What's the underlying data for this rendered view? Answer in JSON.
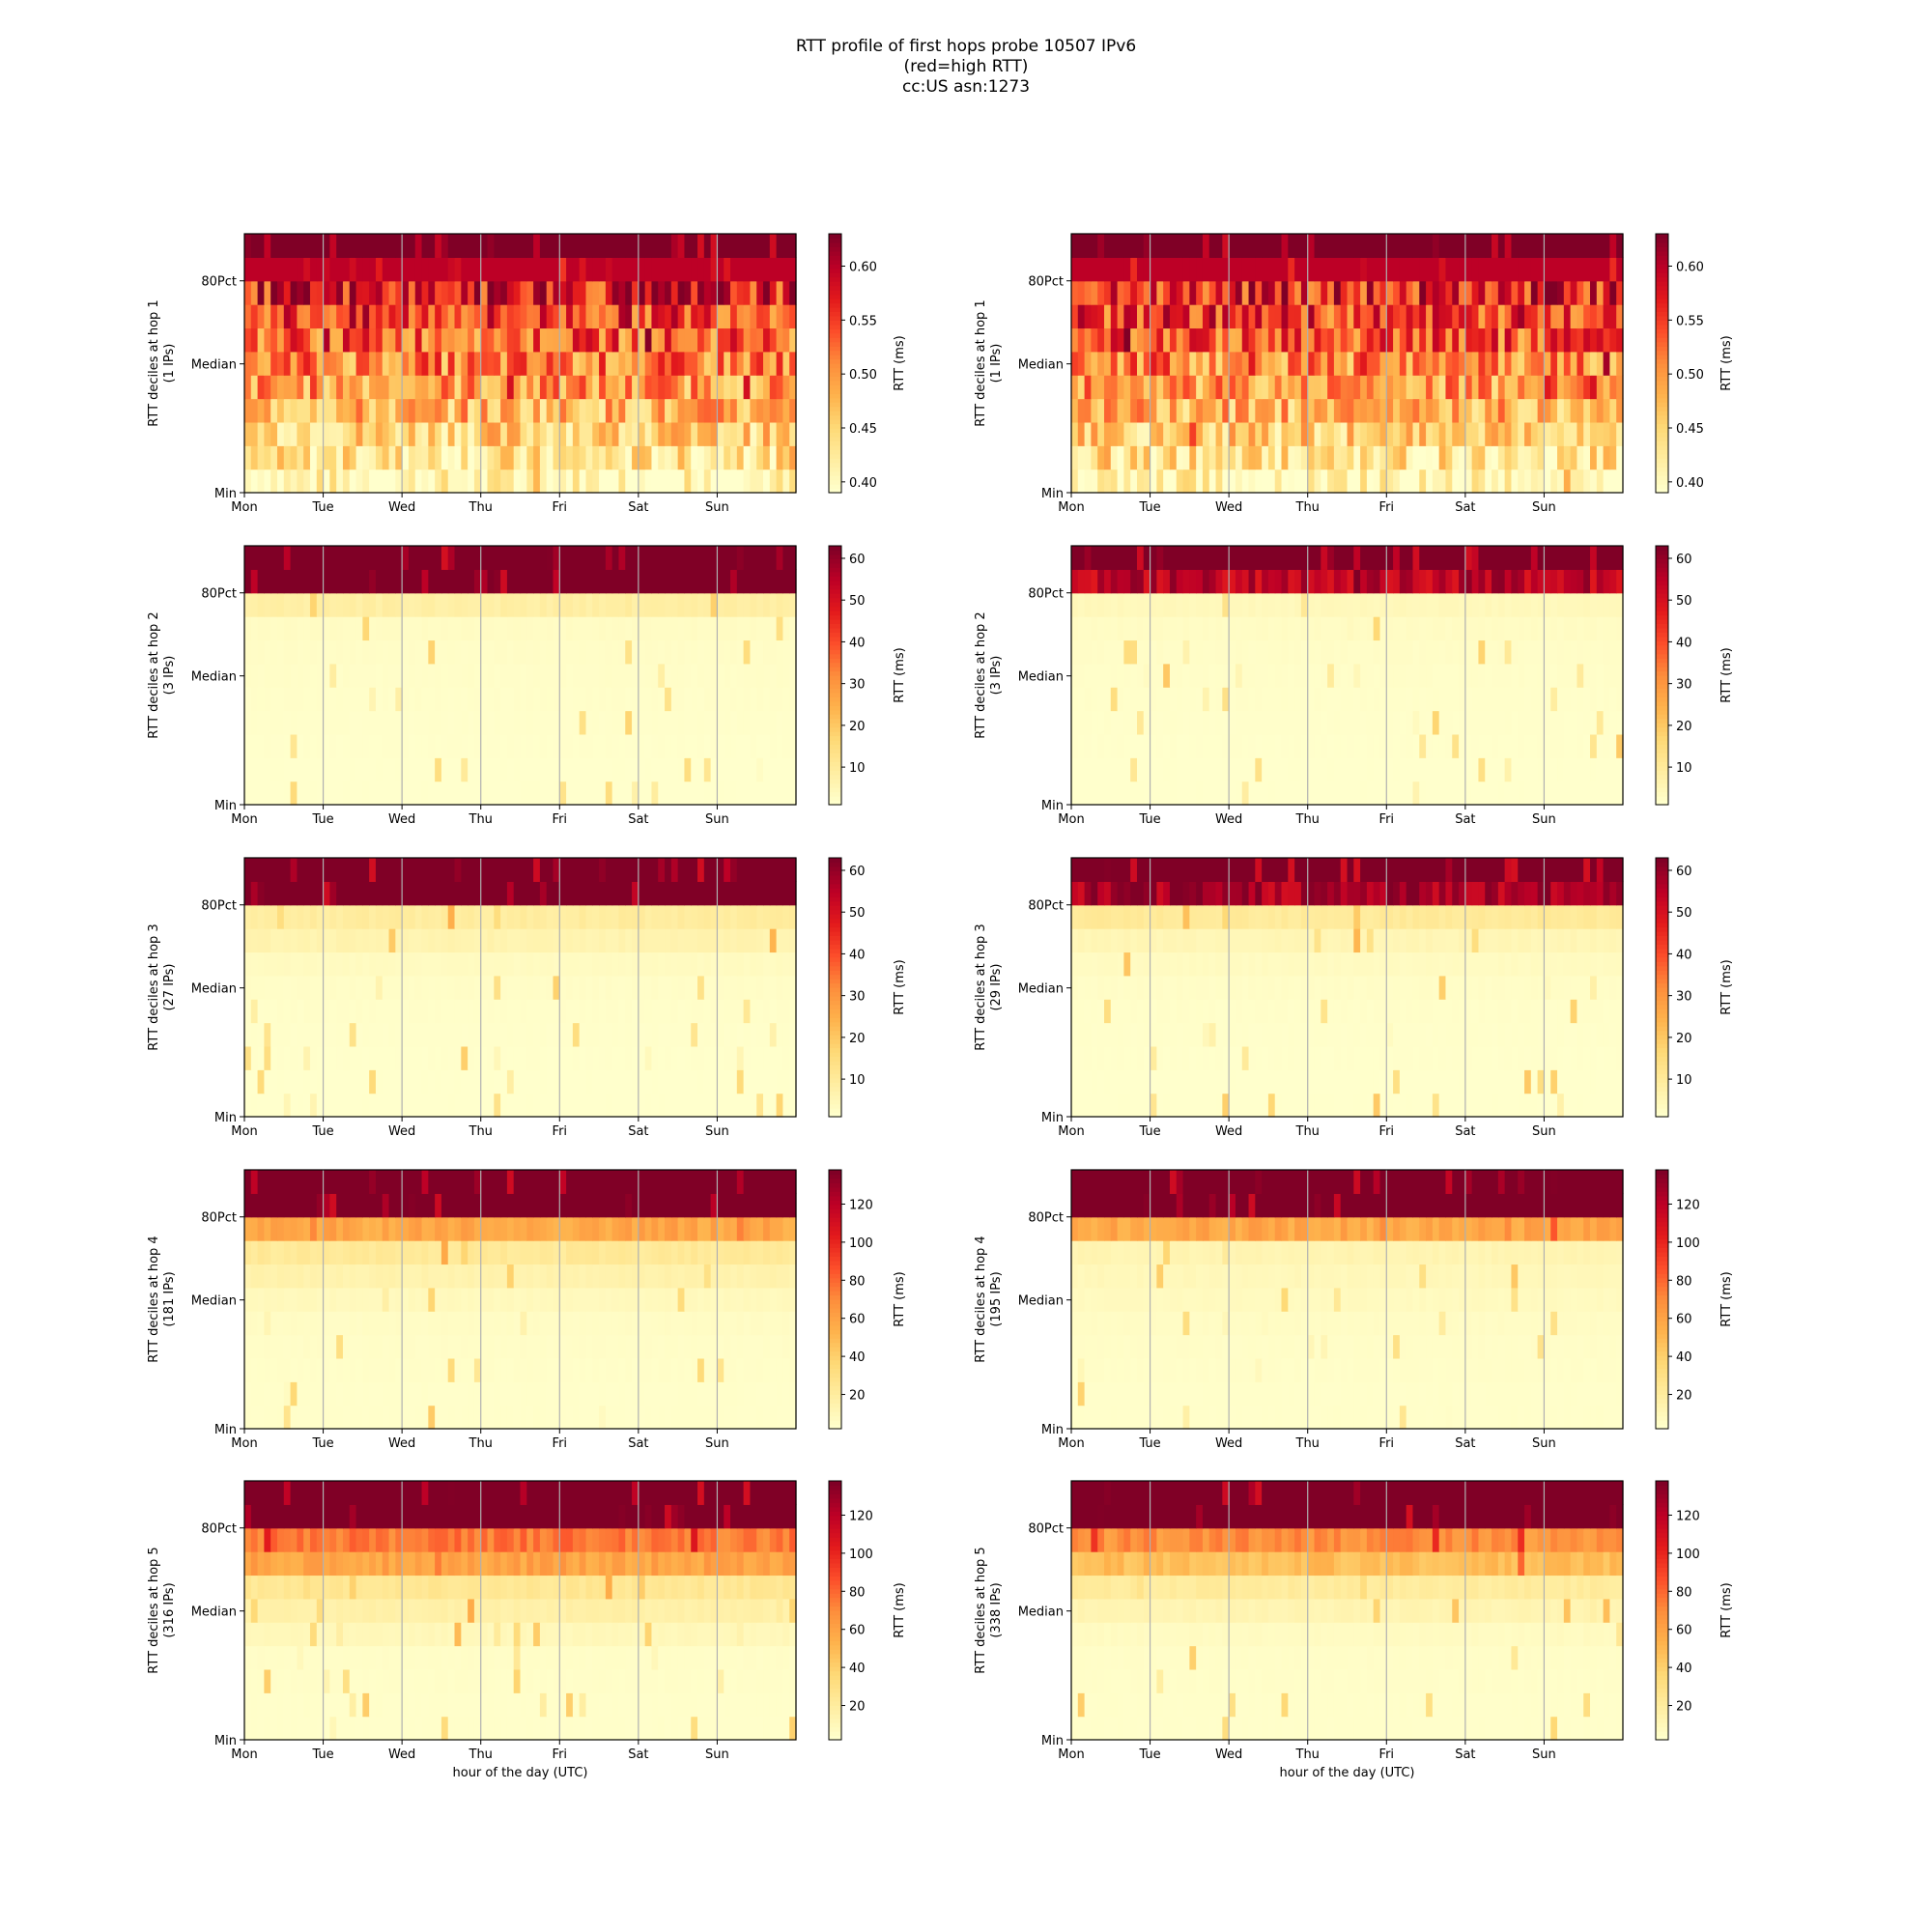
{
  "figure": {
    "title_lines": [
      "RTT profile of first hops probe 10507 IPv6",
      "(red=high RTT)",
      "cc:US asn:1273"
    ],
    "xlabel": "hour of the day (UTC)"
  },
  "chart_data": [
    {
      "type": "heatmap",
      "hop": 1,
      "ylabel": "RTT deciles at hop 1",
      "ips_label": "(1 IPs)",
      "x_ticks": [
        "Mon",
        "Tue",
        "Wed",
        "Thu",
        "Fri",
        "Sat",
        "Sun"
      ],
      "y_ticks": [
        "Min",
        "Median",
        "80Pct"
      ],
      "cbar_label": "RTT (ms)",
      "cbar_ticks": [
        "0.40",
        "0.45",
        "0.50",
        "0.55",
        "0.60"
      ],
      "cbar_range": [
        0.39,
        0.63
      ],
      "decile_rtt": [
        0.405,
        0.43,
        0.455,
        0.475,
        0.495,
        0.51,
        0.53,
        0.55,
        0.57,
        0.6,
        0.63
      ]
    },
    {
      "type": "heatmap",
      "hop": 1,
      "ylabel": "RTT deciles at hop 1",
      "ips_label": "(1 IPs)",
      "x_ticks": [
        "Mon",
        "Tue",
        "Wed",
        "Thu",
        "Fri",
        "Sat",
        "Sun"
      ],
      "y_ticks": [
        "Min",
        "Median",
        "80Pct"
      ],
      "cbar_label": "RTT (ms)",
      "cbar_ticks": [
        "0.40",
        "0.45",
        "0.50",
        "0.55",
        "0.60"
      ],
      "cbar_range": [
        0.39,
        0.63
      ],
      "decile_rtt": [
        0.405,
        0.43,
        0.455,
        0.475,
        0.495,
        0.51,
        0.53,
        0.55,
        0.57,
        0.6,
        0.63
      ]
    },
    {
      "type": "heatmap",
      "hop": 2,
      "ylabel": "RTT deciles at hop 2",
      "ips_label": "(3 IPs)",
      "x_ticks": [
        "Mon",
        "Tue",
        "Wed",
        "Thu",
        "Fri",
        "Sat",
        "Sun"
      ],
      "y_ticks": [
        "Min",
        "Median",
        "80Pct"
      ],
      "cbar_label": "RTT (ms)",
      "cbar_ticks": [
        "10",
        "20",
        "30",
        "40",
        "50",
        "60"
      ],
      "cbar_range": [
        1,
        63
      ],
      "decile_rtt": [
        1,
        1,
        1.2,
        1.4,
        1.6,
        1.8,
        2,
        2.5,
        8,
        63,
        63
      ]
    },
    {
      "type": "heatmap",
      "hop": 2,
      "ylabel": "RTT deciles at hop 2",
      "ips_label": "(3 IPs)",
      "x_ticks": [
        "Mon",
        "Tue",
        "Wed",
        "Thu",
        "Fri",
        "Sat",
        "Sun"
      ],
      "y_ticks": [
        "Min",
        "Median",
        "80Pct"
      ],
      "cbar_label": "RTT (ms)",
      "cbar_ticks": [
        "10",
        "20",
        "30",
        "40",
        "50",
        "60"
      ],
      "cbar_range": [
        1,
        63
      ],
      "decile_rtt": [
        1,
        1,
        1.2,
        1.3,
        1.5,
        1.7,
        2,
        2.5,
        4,
        55,
        63
      ]
    },
    {
      "type": "heatmap",
      "hop": 3,
      "ylabel": "RTT deciles at hop 3",
      "ips_label": "(27 IPs)",
      "x_ticks": [
        "Mon",
        "Tue",
        "Wed",
        "Thu",
        "Fri",
        "Sat",
        "Sun"
      ],
      "y_ticks": [
        "Min",
        "Median",
        "80Pct"
      ],
      "cbar_label": "RTT (ms)",
      "cbar_ticks": [
        "10",
        "20",
        "30",
        "40",
        "50",
        "60"
      ],
      "cbar_range": [
        1,
        63
      ],
      "decile_rtt": [
        1,
        1,
        1.2,
        1.4,
        1.6,
        2,
        3,
        6,
        9,
        63,
        63
      ]
    },
    {
      "type": "heatmap",
      "hop": 3,
      "ylabel": "RTT deciles at hop 3",
      "ips_label": "(29 IPs)",
      "x_ticks": [
        "Mon",
        "Tue",
        "Wed",
        "Thu",
        "Fri",
        "Sat",
        "Sun"
      ],
      "y_ticks": [
        "Min",
        "Median",
        "80Pct"
      ],
      "cbar_label": "RTT (ms)",
      "cbar_ticks": [
        "10",
        "20",
        "30",
        "40",
        "50",
        "60"
      ],
      "cbar_range": [
        1,
        63
      ],
      "decile_rtt": [
        1,
        1,
        1.2,
        1.4,
        1.6,
        2,
        3,
        5,
        10,
        58,
        63
      ]
    },
    {
      "type": "heatmap",
      "hop": 4,
      "ylabel": "RTT deciles at hop 4",
      "ips_label": "(181 IPs)",
      "x_ticks": [
        "Mon",
        "Tue",
        "Wed",
        "Thu",
        "Fri",
        "Sat",
        "Sun"
      ],
      "y_ticks": [
        "Min",
        "Median",
        "80Pct"
      ],
      "cbar_label": "RTT (ms)",
      "cbar_ticks": [
        "20",
        "40",
        "60",
        "80",
        "100",
        "120"
      ],
      "cbar_range": [
        2,
        138
      ],
      "decile_rtt": [
        3,
        3,
        3.5,
        4,
        5,
        8,
        14,
        22,
        58,
        138,
        138
      ]
    },
    {
      "type": "heatmap",
      "hop": 4,
      "ylabel": "RTT deciles at hop 4",
      "ips_label": "(195 IPs)",
      "x_ticks": [
        "Mon",
        "Tue",
        "Wed",
        "Thu",
        "Fri",
        "Sat",
        "Sun"
      ],
      "y_ticks": [
        "Min",
        "Median",
        "80Pct"
      ],
      "cbar_label": "RTT (ms)",
      "cbar_ticks": [
        "20",
        "40",
        "60",
        "80",
        "100",
        "120"
      ],
      "cbar_range": [
        2,
        138
      ],
      "decile_rtt": [
        3,
        3,
        3.5,
        4,
        5,
        7,
        9,
        12,
        58,
        138,
        138
      ]
    },
    {
      "type": "heatmap",
      "hop": 5,
      "ylabel": "RTT deciles at hop 5",
      "ips_label": "(316 IPs)",
      "x_ticks": [
        "Mon",
        "Tue",
        "Wed",
        "Thu",
        "Fri",
        "Sat",
        "Sun"
      ],
      "y_ticks": [
        "Min",
        "Median",
        "80Pct"
      ],
      "cbar_label": "RTT (ms)",
      "cbar_ticks": [
        "20",
        "40",
        "60",
        "80",
        "100",
        "120"
      ],
      "cbar_range": [
        2,
        138
      ],
      "decile_rtt": [
        3,
        3,
        3.5,
        4,
        9,
        16,
        24,
        60,
        75,
        138,
        138
      ]
    },
    {
      "type": "heatmap",
      "hop": 5,
      "ylabel": "RTT deciles at hop 5",
      "ips_label": "(338 IPs)",
      "x_ticks": [
        "Mon",
        "Tue",
        "Wed",
        "Thu",
        "Fri",
        "Sat",
        "Sun"
      ],
      "y_ticks": [
        "Min",
        "Median",
        "80Pct"
      ],
      "cbar_label": "RTT (ms)",
      "cbar_ticks": [
        "20",
        "40",
        "60",
        "80",
        "100",
        "120"
      ],
      "cbar_range": [
        2,
        138
      ],
      "decile_rtt": [
        3,
        3,
        3.5,
        4,
        6,
        12,
        20,
        48,
        68,
        138,
        138
      ]
    }
  ]
}
